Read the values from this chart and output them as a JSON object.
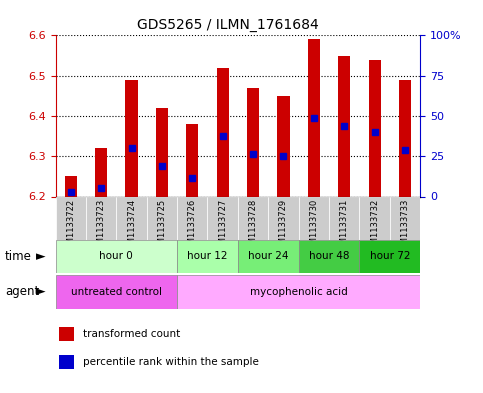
{
  "title": "GDS5265 / ILMN_1761684",
  "samples": [
    "GSM1133722",
    "GSM1133723",
    "GSM1133724",
    "GSM1133725",
    "GSM1133726",
    "GSM1133727",
    "GSM1133728",
    "GSM1133729",
    "GSM1133730",
    "GSM1133731",
    "GSM1133732",
    "GSM1133733"
  ],
  "bar_top": [
    6.25,
    6.32,
    6.49,
    6.42,
    6.38,
    6.52,
    6.47,
    6.45,
    6.59,
    6.55,
    6.54,
    6.49
  ],
  "bar_bottom": 6.2,
  "percentile_rank": [
    6.21,
    6.22,
    6.32,
    6.275,
    6.245,
    6.35,
    6.305,
    6.3,
    6.395,
    6.375,
    6.36,
    6.315
  ],
  "ylim_left": [
    6.2,
    6.6
  ],
  "ylim_right": [
    0,
    100
  ],
  "yticks_left": [
    6.2,
    6.3,
    6.4,
    6.5,
    6.6
  ],
  "yticks_right": [
    0,
    25,
    50,
    75,
    100
  ],
  "bar_color": "#cc0000",
  "percentile_color": "#0000cc",
  "time_groups": [
    {
      "label": "hour 0",
      "start": 0,
      "end": 4,
      "color": "#ccffcc"
    },
    {
      "label": "hour 12",
      "start": 4,
      "end": 6,
      "color": "#aaffaa"
    },
    {
      "label": "hour 24",
      "start": 6,
      "end": 8,
      "color": "#77ee77"
    },
    {
      "label": "hour 48",
      "start": 8,
      "end": 10,
      "color": "#44cc44"
    },
    {
      "label": "hour 72",
      "start": 10,
      "end": 12,
      "color": "#22bb22"
    }
  ],
  "agent_groups": [
    {
      "label": "untreated control",
      "start": 0,
      "end": 4,
      "color": "#ee66ee"
    },
    {
      "label": "mycophenolic acid",
      "start": 4,
      "end": 12,
      "color": "#ffaaff"
    }
  ],
  "legend_items": [
    {
      "label": "transformed count",
      "color": "#cc0000",
      "marker": "s"
    },
    {
      "label": "percentile rank within the sample",
      "color": "#0000cc",
      "marker": "s"
    }
  ],
  "axis_label_color_left": "#cc0000",
  "axis_label_color_right": "#0000cc",
  "bg_color": "#ffffff",
  "plot_bg_color": "#ffffff",
  "grid_color": "#000000",
  "sample_bg_color": "#cccccc",
  "time_label": "time",
  "agent_label": "agent"
}
